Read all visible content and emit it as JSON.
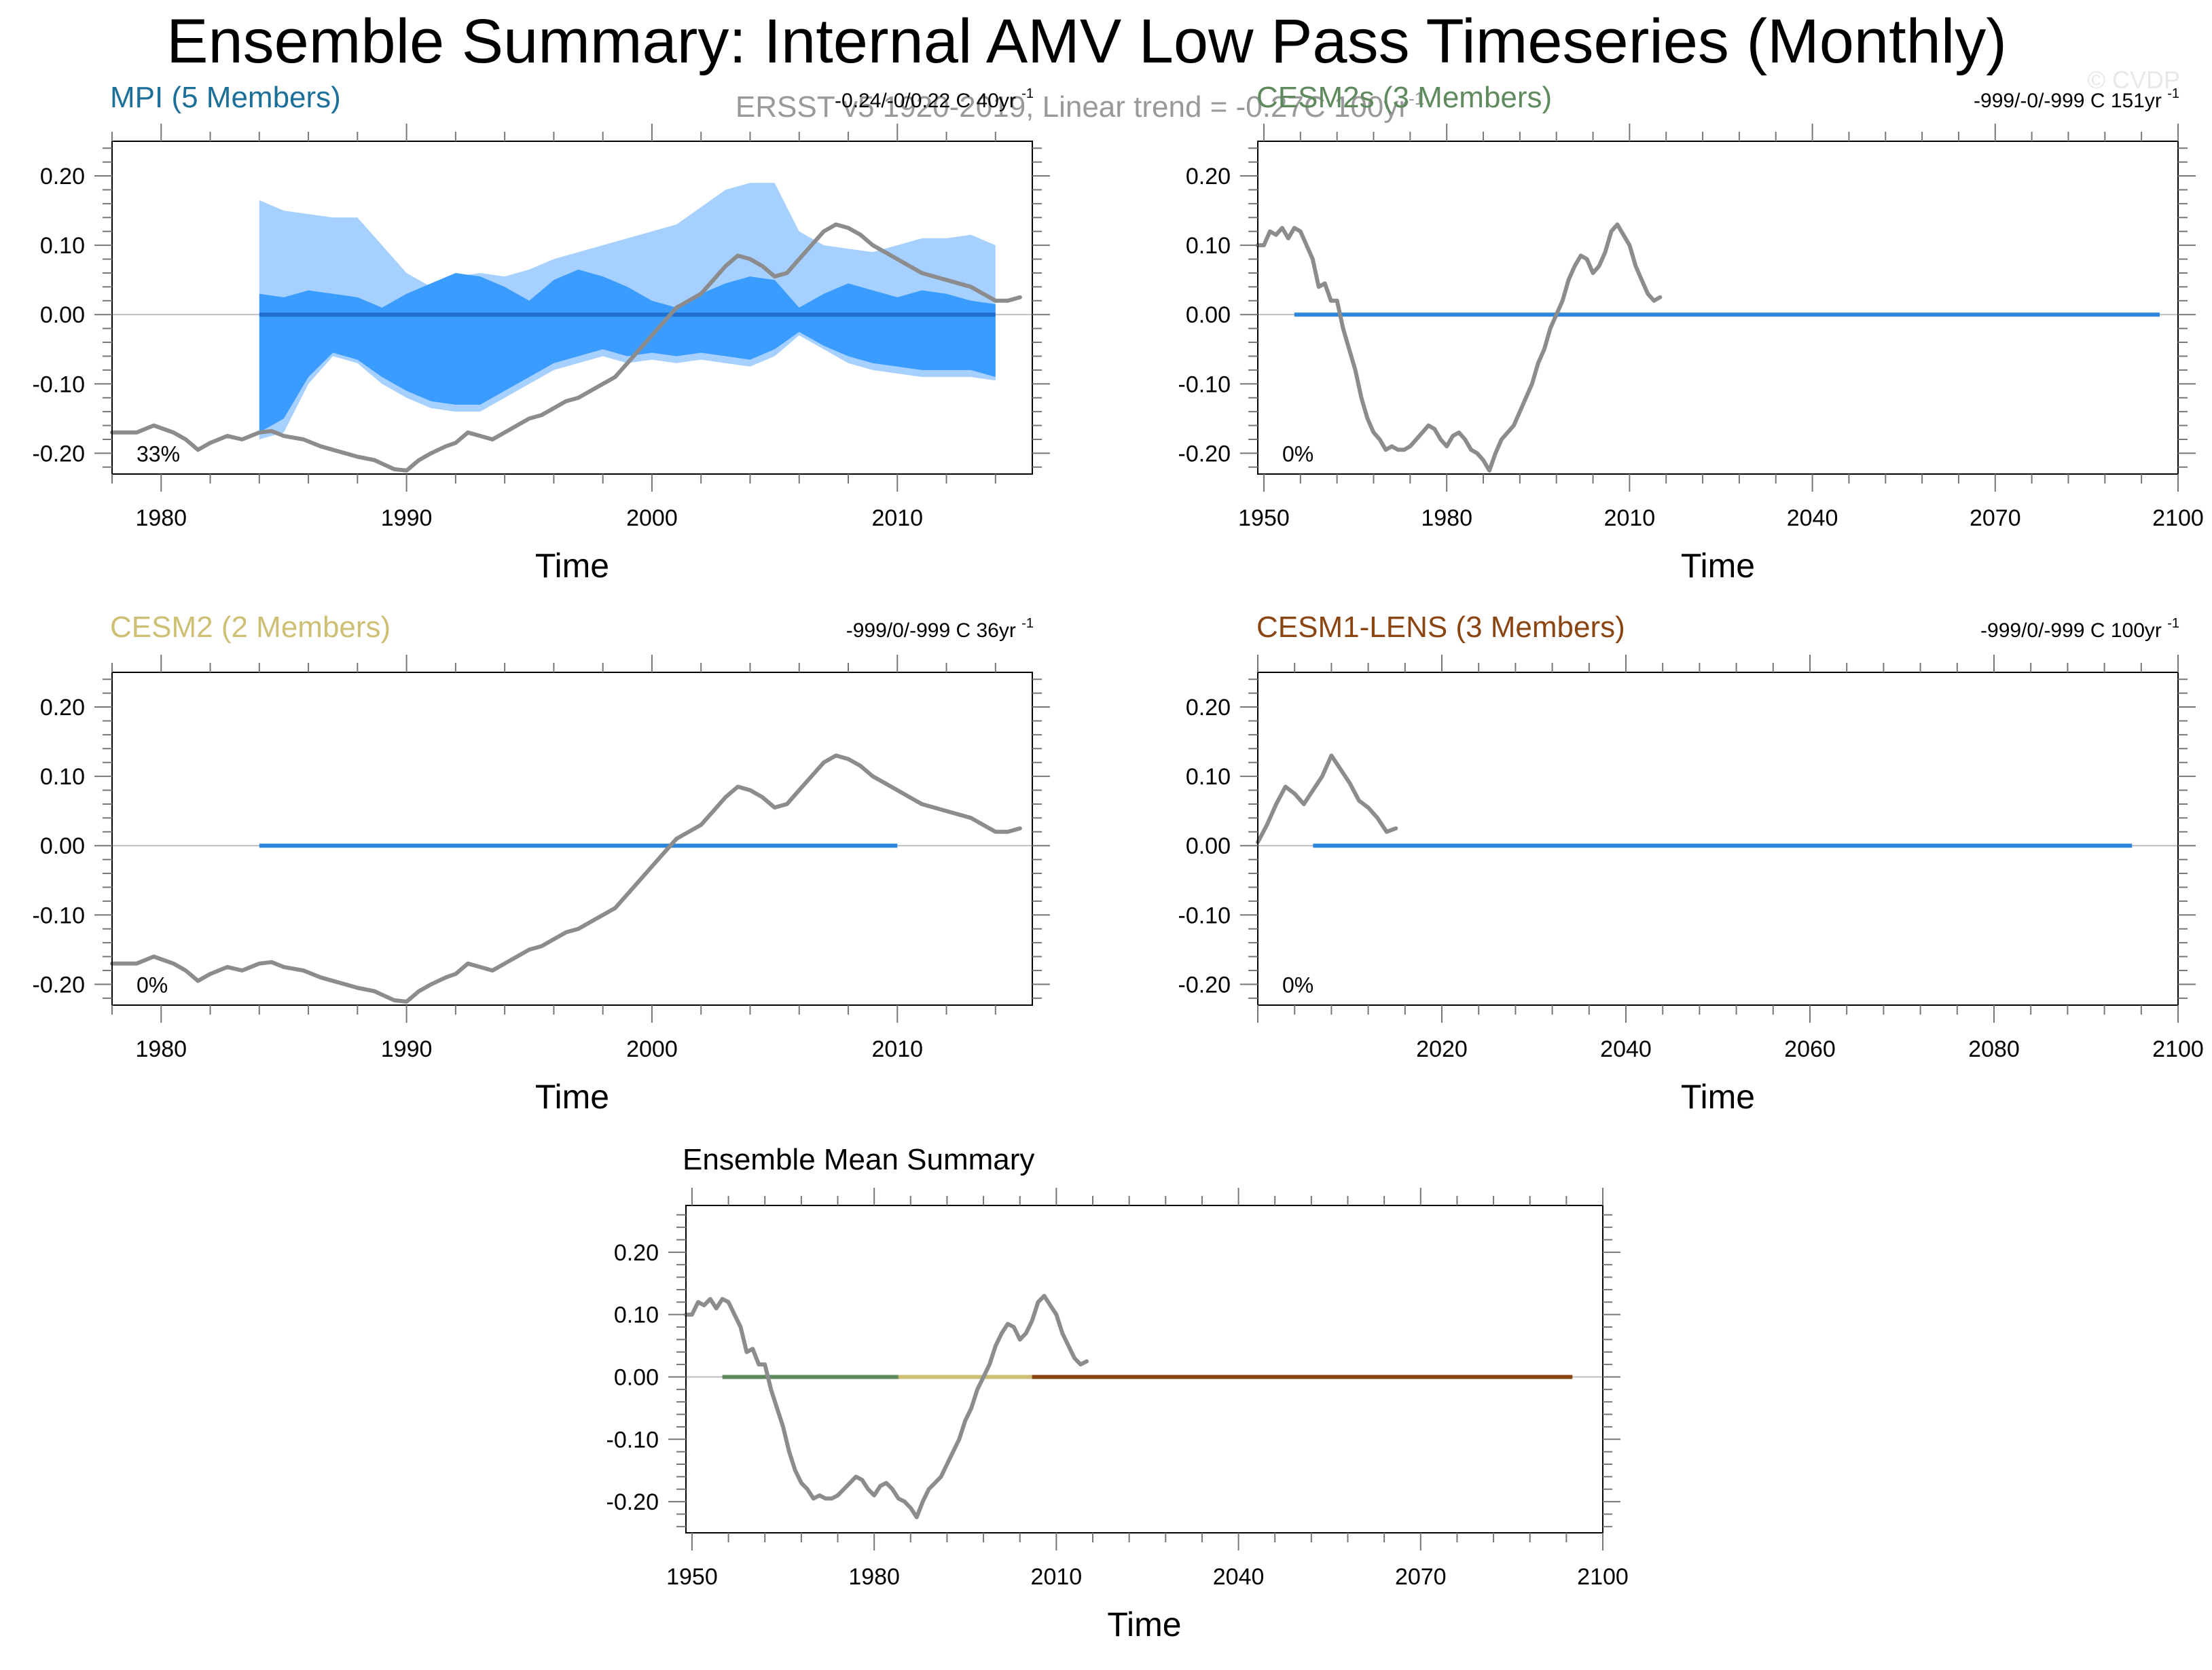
{
  "figure": {
    "title": "Ensemble Summary: Internal AMV Low Pass Timeseries (Monthly)",
    "subtitle": "ERSST v5 1920-2019, Linear trend = -0.27C 100yr",
    "subtitle_sup": "-1",
    "copyright": "© CVDP"
  },
  "colors": {
    "obs_line": "#8c8c8c",
    "band_outer": "#a6d0ff",
    "band_inner": "#3a9cff",
    "ens_mean": "#1e6fd0",
    "flat_line": "#2b86dc",
    "zero_line": "#bdbdbd",
    "mpi_title": "#1b6f99",
    "cesm2s_title": "#5e8a5e",
    "cesm2_title": "#cdbf74",
    "cesm1lens_title": "#8b4513",
    "summary_cesm2s": "#5e8a5e",
    "summary_cesm2": "#cdbf74",
    "summary_cesm1lens": "#8b4513"
  },
  "chart_data": [
    {
      "id": "mpi",
      "type": "line",
      "title": "MPI (5 Members)",
      "title_color": "#1b6f99",
      "stats": "-0.24/-0/0.22 C 40yr",
      "stats_sup": "-1",
      "pct_label": "33%",
      "xlabel": "Time",
      "xlim": [
        1978,
        2015.5
      ],
      "ylim": [
        -0.23,
        0.25
      ],
      "xticks": [
        1980,
        1990,
        2000,
        2010
      ],
      "yticks": [
        0.2,
        0.1,
        0.0,
        -0.1,
        -0.2
      ],
      "ytick_labels": [
        "0.20",
        "0.10",
        "0.00",
        "-0.10",
        "-0.20"
      ],
      "obs_series": {
        "name": "ERSST v5",
        "x": [
          1978.0,
          1979.0,
          1979.7,
          1980.5,
          1981.0,
          1981.5,
          1982.0,
          1982.7,
          1983.3,
          1984.0,
          1984.5,
          1985.0,
          1985.8,
          1986.5,
          1987.0,
          1987.5,
          1988.0,
          1988.7,
          1989.0,
          1989.5,
          1990.0,
          1990.5,
          1991.0,
          1991.6,
          1992.0,
          1992.5,
          1993.0,
          1993.5,
          1994.0,
          1994.5,
          1995.0,
          1995.5,
          1996.0,
          1996.5,
          1997.0,
          1997.5,
          1998.0,
          1998.5,
          1999.0,
          1999.5,
          2000.0,
          2000.5,
          2001.0,
          2001.5,
          2002.0,
          2002.5,
          2003.0,
          2003.5,
          2004.0,
          2004.5,
          2005.0,
          2005.5,
          2006.0,
          2006.5,
          2007.0,
          2007.5,
          2008.0,
          2008.5,
          2009.0,
          2009.5,
          2010.0,
          2010.5,
          2011.0,
          2011.5,
          2012.0,
          2012.5,
          2013.0,
          2013.5,
          2014.0,
          2014.5,
          2015.0
        ],
        "y": [
          -0.17,
          -0.17,
          -0.16,
          -0.17,
          -0.18,
          -0.195,
          -0.185,
          -0.175,
          -0.18,
          -0.17,
          -0.168,
          -0.175,
          -0.18,
          -0.19,
          -0.195,
          -0.2,
          -0.205,
          -0.21,
          -0.215,
          -0.223,
          -0.225,
          -0.21,
          -0.2,
          -0.19,
          -0.185,
          -0.17,
          -0.175,
          -0.18,
          -0.17,
          -0.16,
          -0.15,
          -0.145,
          -0.135,
          -0.125,
          -0.12,
          -0.11,
          -0.1,
          -0.09,
          -0.07,
          -0.05,
          -0.03,
          -0.01,
          0.01,
          0.02,
          0.03,
          0.05,
          0.07,
          0.085,
          0.08,
          0.07,
          0.055,
          0.06,
          0.08,
          0.1,
          0.12,
          0.13,
          0.125,
          0.115,
          0.1,
          0.09,
          0.08,
          0.07,
          0.06,
          0.055,
          0.05,
          0.045,
          0.04,
          0.03,
          0.02,
          0.02,
          0.025
        ]
      },
      "spread_outer": {
        "x": [
          1984,
          1985,
          1986,
          1987,
          1988,
          1989,
          1990,
          1991,
          1992,
          1993,
          1994,
          1995,
          1996,
          1997,
          1998,
          1999,
          2000,
          2001,
          2002,
          2003,
          2004,
          2005,
          2006,
          2007,
          2008,
          2009,
          2010,
          2011,
          2012,
          2013,
          2014
        ],
        "upper": [
          0.165,
          0.15,
          0.145,
          0.14,
          0.14,
          0.1,
          0.06,
          0.04,
          0.055,
          0.06,
          0.055,
          0.065,
          0.08,
          0.09,
          0.1,
          0.11,
          0.12,
          0.13,
          0.155,
          0.18,
          0.19,
          0.19,
          0.12,
          0.1,
          0.095,
          0.09,
          0.1,
          0.11,
          0.11,
          0.115,
          0.1
        ],
        "lower": [
          -0.18,
          -0.17,
          -0.1,
          -0.06,
          -0.07,
          -0.1,
          -0.12,
          -0.135,
          -0.14,
          -0.14,
          -0.12,
          -0.1,
          -0.08,
          -0.07,
          -0.06,
          -0.07,
          -0.065,
          -0.07,
          -0.065,
          -0.07,
          -0.075,
          -0.06,
          -0.03,
          -0.05,
          -0.07,
          -0.08,
          -0.085,
          -0.09,
          -0.09,
          -0.09,
          -0.095
        ]
      },
      "spread_inner": {
        "x": [
          1984,
          1985,
          1986,
          1987,
          1988,
          1989,
          1990,
          1991,
          1992,
          1993,
          1994,
          1995,
          1996,
          1997,
          1998,
          1999,
          2000,
          2001,
          2002,
          2003,
          2004,
          2005,
          2006,
          2007,
          2008,
          2009,
          2010,
          2011,
          2012,
          2013,
          2014
        ],
        "upper": [
          0.03,
          0.025,
          0.035,
          0.03,
          0.025,
          0.01,
          0.03,
          0.045,
          0.06,
          0.055,
          0.04,
          0.02,
          0.05,
          0.065,
          0.055,
          0.04,
          0.02,
          0.01,
          0.03,
          0.045,
          0.055,
          0.05,
          0.01,
          0.03,
          0.045,
          0.035,
          0.025,
          0.035,
          0.03,
          0.02,
          0.015
        ],
        "lower": [
          -0.17,
          -0.15,
          -0.09,
          -0.055,
          -0.065,
          -0.09,
          -0.11,
          -0.125,
          -0.13,
          -0.13,
          -0.11,
          -0.09,
          -0.07,
          -0.06,
          -0.05,
          -0.06,
          -0.055,
          -0.06,
          -0.055,
          -0.06,
          -0.065,
          -0.05,
          -0.025,
          -0.045,
          -0.06,
          -0.07,
          -0.075,
          -0.08,
          -0.08,
          -0.08,
          -0.09
        ]
      },
      "flat_lines": [
        {
          "x": [
            1984,
            2014
          ],
          "y": 0.0,
          "color": "#1e6fd0"
        }
      ]
    },
    {
      "id": "cesm2s",
      "type": "line",
      "title": "CESM2s (3 Members)",
      "title_color": "#5e8a5e",
      "stats": "-999/-0/-999 C 151yr",
      "stats_sup": "-1",
      "pct_label": "0%",
      "xlabel": "Time",
      "xlim": [
        1949,
        2100
      ],
      "ylim": [
        -0.23,
        0.25
      ],
      "xticks": [
        1950,
        1980,
        2010,
        2040,
        2070,
        2100
      ],
      "yticks": [
        0.2,
        0.1,
        0.0,
        -0.1,
        -0.2
      ],
      "ytick_labels": [
        "0.20",
        "0.10",
        "0.00",
        "-0.10",
        "-0.20"
      ],
      "obs_series": {
        "name": "ERSST v5",
        "x": [
          1949,
          1950,
          1951,
          1952,
          1953,
          1954,
          1955,
          1956,
          1957,
          1958,
          1959,
          1960,
          1961,
          1962,
          1963,
          1964,
          1965,
          1966,
          1967,
          1968,
          1969,
          1970,
          1971,
          1972,
          1973,
          1974,
          1975,
          1976,
          1977,
          1978,
          1979,
          1980,
          1981,
          1982,
          1983,
          1984,
          1985,
          1986,
          1987,
          1988,
          1989,
          1990,
          1991,
          1992,
          1993,
          1994,
          1995,
          1996,
          1997,
          1998,
          1999,
          2000,
          2001,
          2002,
          2003,
          2004,
          2005,
          2006,
          2007,
          2008,
          2009,
          2010,
          2011,
          2012,
          2013,
          2014,
          2015
        ],
        "y": [
          0.1,
          0.1,
          0.12,
          0.115,
          0.125,
          0.11,
          0.125,
          0.12,
          0.1,
          0.08,
          0.04,
          0.045,
          0.02,
          0.02,
          -0.02,
          -0.05,
          -0.08,
          -0.12,
          -0.15,
          -0.17,
          -0.18,
          -0.195,
          -0.19,
          -0.195,
          -0.195,
          -0.19,
          -0.18,
          -0.17,
          -0.16,
          -0.165,
          -0.18,
          -0.19,
          -0.175,
          -0.17,
          -0.18,
          -0.195,
          -0.2,
          -0.21,
          -0.225,
          -0.2,
          -0.18,
          -0.17,
          -0.16,
          -0.14,
          -0.12,
          -0.1,
          -0.07,
          -0.05,
          -0.02,
          0.0,
          0.02,
          0.05,
          0.07,
          0.085,
          0.08,
          0.06,
          0.07,
          0.09,
          0.12,
          0.13,
          0.115,
          0.1,
          0.07,
          0.05,
          0.03,
          0.02,
          0.025
        ]
      },
      "flat_lines": [
        {
          "x": [
            1955,
            2097
          ],
          "y": 0.0,
          "color": "#2b86dc"
        }
      ]
    },
    {
      "id": "cesm2",
      "type": "line",
      "title": "CESM2 (2 Members)",
      "title_color": "#cdbf74",
      "stats": "-999/0/-999 C 36yr",
      "stats_sup": "-1",
      "pct_label": "0%",
      "xlabel": "Time",
      "xlim": [
        1978,
        2015.5
      ],
      "ylim": [
        -0.23,
        0.25
      ],
      "xticks": [
        1980,
        1990,
        2000,
        2010
      ],
      "yticks": [
        0.2,
        0.1,
        0.0,
        -0.1,
        -0.2
      ],
      "ytick_labels": [
        "0.20",
        "0.10",
        "0.00",
        "-0.10",
        "-0.20"
      ],
      "obs_series": {
        "name": "ERSST v5",
        "x": [
          1978.0,
          1979.0,
          1979.7,
          1980.5,
          1981.0,
          1981.5,
          1982.0,
          1982.7,
          1983.3,
          1984.0,
          1984.5,
          1985.0,
          1985.8,
          1986.5,
          1987.0,
          1987.5,
          1988.0,
          1988.7,
          1989.0,
          1989.5,
          1990.0,
          1990.5,
          1991.0,
          1991.6,
          1992.0,
          1992.5,
          1993.0,
          1993.5,
          1994.0,
          1994.5,
          1995.0,
          1995.5,
          1996.0,
          1996.5,
          1997.0,
          1997.5,
          1998.0,
          1998.5,
          1999.0,
          1999.5,
          2000.0,
          2000.5,
          2001.0,
          2001.5,
          2002.0,
          2002.5,
          2003.0,
          2003.5,
          2004.0,
          2004.5,
          2005.0,
          2005.5,
          2006.0,
          2006.5,
          2007.0,
          2007.5,
          2008.0,
          2008.5,
          2009.0,
          2009.5,
          2010.0,
          2010.5,
          2011.0,
          2011.5,
          2012.0,
          2012.5,
          2013.0,
          2013.5,
          2014.0,
          2014.5,
          2015.0
        ],
        "y": [
          -0.17,
          -0.17,
          -0.16,
          -0.17,
          -0.18,
          -0.195,
          -0.185,
          -0.175,
          -0.18,
          -0.17,
          -0.168,
          -0.175,
          -0.18,
          -0.19,
          -0.195,
          -0.2,
          -0.205,
          -0.21,
          -0.215,
          -0.223,
          -0.225,
          -0.21,
          -0.2,
          -0.19,
          -0.185,
          -0.17,
          -0.175,
          -0.18,
          -0.17,
          -0.16,
          -0.15,
          -0.145,
          -0.135,
          -0.125,
          -0.12,
          -0.11,
          -0.1,
          -0.09,
          -0.07,
          -0.05,
          -0.03,
          -0.01,
          0.01,
          0.02,
          0.03,
          0.05,
          0.07,
          0.085,
          0.08,
          0.07,
          0.055,
          0.06,
          0.08,
          0.1,
          0.12,
          0.13,
          0.125,
          0.115,
          0.1,
          0.09,
          0.08,
          0.07,
          0.06,
          0.055,
          0.05,
          0.045,
          0.04,
          0.03,
          0.02,
          0.02,
          0.025
        ]
      },
      "flat_lines": [
        {
          "x": [
            1984,
            2010
          ],
          "y": 0.0,
          "color": "#2b86dc"
        }
      ]
    },
    {
      "id": "cesm1lens",
      "type": "line",
      "title": "CESM1-LENS (3 Members)",
      "title_color": "#8b4513",
      "stats": "-999/0/-999 C 100yr",
      "stats_sup": "-1",
      "pct_label": "0%",
      "xlabel": "Time",
      "xlim": [
        2000,
        2100
      ],
      "ylim": [
        -0.23,
        0.25
      ],
      "xticks": [
        2020,
        2040,
        2060,
        2080,
        2100
      ],
      "yticks": [
        0.2,
        0.1,
        0.0,
        -0.1,
        -0.2
      ],
      "ytick_labels": [
        "0.20",
        "0.10",
        "0.00",
        "-0.10",
        "-0.20"
      ],
      "obs_series": {
        "name": "ERSST v5",
        "x": [
          2000,
          2001,
          2002,
          2003,
          2004,
          2005,
          2006,
          2007,
          2008,
          2009,
          2010,
          2011,
          2012,
          2013,
          2014,
          2015
        ],
        "y": [
          0.005,
          0.03,
          0.06,
          0.085,
          0.075,
          0.06,
          0.08,
          0.1,
          0.13,
          0.11,
          0.09,
          0.065,
          0.055,
          0.04,
          0.02,
          0.025
        ]
      },
      "flat_lines": [
        {
          "x": [
            2006,
            2095
          ],
          "y": 0.0,
          "color": "#2b86dc"
        }
      ]
    },
    {
      "id": "summary",
      "type": "line",
      "title": "Ensemble Mean Summary",
      "title_color": "#000000",
      "stats": "",
      "stats_sup": "",
      "pct_label": "",
      "xlabel": "Time",
      "xlim": [
        1949,
        2100
      ],
      "ylim": [
        -0.25,
        0.275
      ],
      "xticks": [
        1950,
        1980,
        2010,
        2040,
        2070,
        2100
      ],
      "yticks": [
        0.2,
        0.1,
        0.0,
        -0.1,
        -0.2
      ],
      "ytick_labels": [
        "0.20",
        "0.10",
        "0.00",
        "-0.10",
        "-0.20"
      ],
      "obs_series": {
        "name": "ERSST v5",
        "x": [
          1949,
          1950,
          1951,
          1952,
          1953,
          1954,
          1955,
          1956,
          1957,
          1958,
          1959,
          1960,
          1961,
          1962,
          1963,
          1964,
          1965,
          1966,
          1967,
          1968,
          1969,
          1970,
          1971,
          1972,
          1973,
          1974,
          1975,
          1976,
          1977,
          1978,
          1979,
          1980,
          1981,
          1982,
          1983,
          1984,
          1985,
          1986,
          1987,
          1988,
          1989,
          1990,
          1991,
          1992,
          1993,
          1994,
          1995,
          1996,
          1997,
          1998,
          1999,
          2000,
          2001,
          2002,
          2003,
          2004,
          2005,
          2006,
          2007,
          2008,
          2009,
          2010,
          2011,
          2012,
          2013,
          2014,
          2015
        ],
        "y": [
          0.1,
          0.1,
          0.12,
          0.115,
          0.125,
          0.11,
          0.125,
          0.12,
          0.1,
          0.08,
          0.04,
          0.045,
          0.02,
          0.02,
          -0.02,
          -0.05,
          -0.08,
          -0.12,
          -0.15,
          -0.17,
          -0.18,
          -0.195,
          -0.19,
          -0.195,
          -0.195,
          -0.19,
          -0.18,
          -0.17,
          -0.16,
          -0.165,
          -0.18,
          -0.19,
          -0.175,
          -0.17,
          -0.18,
          -0.195,
          -0.2,
          -0.21,
          -0.225,
          -0.2,
          -0.18,
          -0.17,
          -0.16,
          -0.14,
          -0.12,
          -0.1,
          -0.07,
          -0.05,
          -0.02,
          0.0,
          0.02,
          0.05,
          0.07,
          0.085,
          0.08,
          0.06,
          0.07,
          0.09,
          0.12,
          0.13,
          0.115,
          0.1,
          0.07,
          0.05,
          0.03,
          0.02,
          0.025
        ]
      },
      "flat_lines": [
        {
          "x": [
            1955,
            1984
          ],
          "y": 0.0,
          "color": "#5e8a5e"
        },
        {
          "x": [
            1984,
            2006
          ],
          "y": 0.0,
          "color": "#cdbf74"
        },
        {
          "x": [
            2006,
            2095
          ],
          "y": 0.0,
          "color": "#8b4513"
        }
      ]
    }
  ]
}
